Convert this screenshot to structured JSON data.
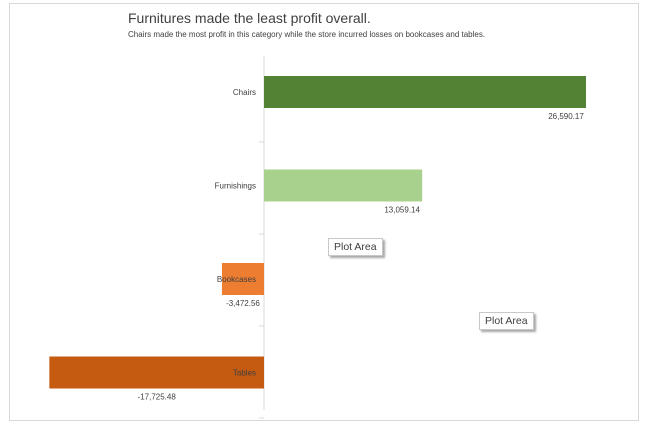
{
  "chart_data": {
    "type": "bar",
    "orientation": "horizontal",
    "title": "Furnitures made the least profit overall.",
    "subtitle": "Chairs made the most profit in this category while the store incurred losses on bookcases and tables.",
    "categories": [
      "Chairs",
      "Furnishings",
      "Bookcases",
      "Tables"
    ],
    "values": [
      26590.17,
      13059.14,
      -3472.56,
      -17725.48
    ],
    "value_labels": [
      "26,590.17",
      "13,059.14",
      "-3,472.56",
      "-17,725.48"
    ],
    "colors": [
      "#548235",
      "#a9d18e",
      "#ed7d31",
      "#c55a11"
    ],
    "xlim": [
      -18000,
      27000
    ],
    "grid": false,
    "legend": "none"
  },
  "tooltips": [
    "Plot Area",
    "Plot Area"
  ]
}
